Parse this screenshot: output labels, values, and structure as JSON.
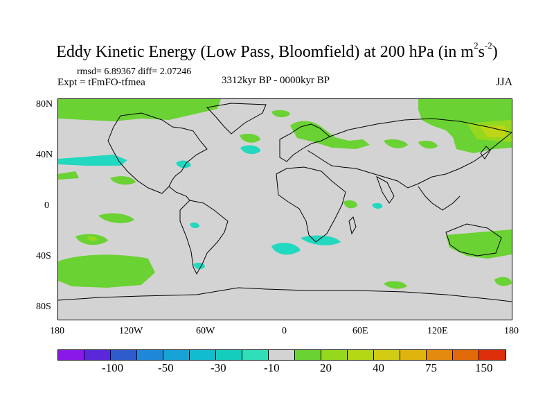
{
  "title": {
    "main": "Eddy Kinetic Energy (Low Pass, Bloomfield) at 200 hPa (in m",
    "sup1": "2",
    "mid": "s",
    "sup2": "-2",
    "end": ")"
  },
  "stats": "rmsd= 6.89367  diff= 2.07246",
  "experiment": "Expt = tFmFO-tfmea",
  "period": "3312kyr BP - 0000kyr BP",
  "season": "JJA",
  "lat_labels": [
    "80N",
    "40N",
    "0",
    "40S",
    "80S"
  ],
  "lon_labels": [
    "180",
    "120W",
    "60W",
    "0",
    "60E",
    "120E",
    "180"
  ],
  "colorbar": {
    "colors": [
      "#8a18e8",
      "#5a28d8",
      "#2e5ccc",
      "#1f88d8",
      "#16a4d6",
      "#12bcd0",
      "#14cdbc",
      "#30deb8",
      "#d3d3d3",
      "#6ad232",
      "#96d81e",
      "#b4d814",
      "#d2cc12",
      "#e0b40e",
      "#e48a0c",
      "#e26a0a",
      "#de2e0a"
    ],
    "labels": [
      "-100",
      "-50",
      "-30",
      "-10",
      "20",
      "40",
      "75",
      "150"
    ]
  },
  "colors": {
    "green": "#6ad232",
    "lime": "#96d81e",
    "yellow_green": "#c0d418",
    "cyan": "#22d8c0",
    "land_fill": "#d3d3d3"
  }
}
